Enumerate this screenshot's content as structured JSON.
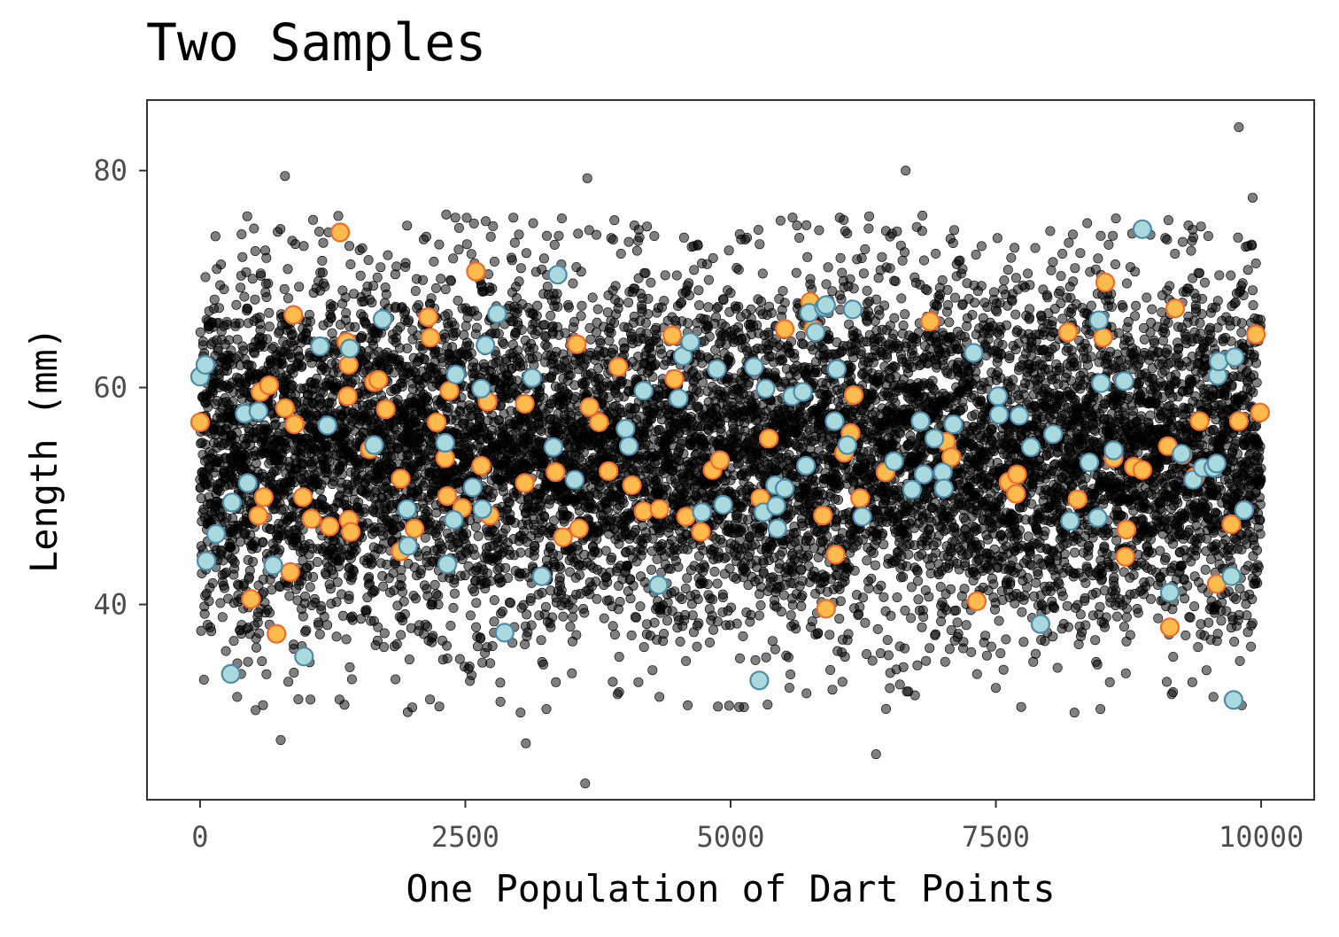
{
  "chart_data": {
    "type": "scatter",
    "title": "Two Samples",
    "xlabel": "One Population of Dart Points",
    "ylabel": "Length (mm)",
    "xlim": [
      -500,
      10500
    ],
    "ylim": [
      22,
      86.5
    ],
    "x_ticks": [
      0,
      2500,
      5000,
      7500,
      10000
    ],
    "y_ticks": [
      40,
      60,
      80
    ],
    "grid": false,
    "legend": "none",
    "population": {
      "n": 10000,
      "mean": 54,
      "sd": 8.4,
      "color": "#000000",
      "opacity": 0.5,
      "extreme_points": [
        {
          "x": 9790,
          "y": 84
        },
        {
          "x": 6650,
          "y": 80
        },
        {
          "x": 800,
          "y": 79.5
        },
        {
          "x": 3650,
          "y": 79.3
        },
        {
          "x": 9920,
          "y": 77.5
        },
        {
          "x": 6370,
          "y": 26.2
        },
        {
          "x": 3630,
          "y": 23.5
        },
        {
          "x": 760,
          "y": 27.5
        },
        {
          "x": 3070,
          "y": 27.2
        }
      ]
    },
    "series": [
      {
        "fill": "#fdbb4d",
        "stroke": "#f06a2b",
        "values": [
          {
            "x": 0,
            "y": 56.8
          },
          {
            "x": 480,
            "y": 40.5
          },
          {
            "x": 550,
            "y": 48.2
          },
          {
            "x": 570,
            "y": 59.6
          },
          {
            "x": 600,
            "y": 49.9
          },
          {
            "x": 650,
            "y": 60.2
          },
          {
            "x": 720,
            "y": 37.3
          },
          {
            "x": 800,
            "y": 58.1
          },
          {
            "x": 850,
            "y": 43
          },
          {
            "x": 880,
            "y": 66.7
          },
          {
            "x": 890,
            "y": 56.6
          },
          {
            "x": 970,
            "y": 49.9
          },
          {
            "x": 1050,
            "y": 47.9
          },
          {
            "x": 1220,
            "y": 47.2
          },
          {
            "x": 1320,
            "y": 74.3
          },
          {
            "x": 1380,
            "y": 64.2
          },
          {
            "x": 1390,
            "y": 59.2
          },
          {
            "x": 1400,
            "y": 62.1
          },
          {
            "x": 1400,
            "y": 47.8
          },
          {
            "x": 1420,
            "y": 46.7
          },
          {
            "x": 1600,
            "y": 54.3
          },
          {
            "x": 1640,
            "y": 60.5
          },
          {
            "x": 1680,
            "y": 60.7
          },
          {
            "x": 1750,
            "y": 58
          },
          {
            "x": 1890,
            "y": 51.6
          },
          {
            "x": 1890,
            "y": 44.9
          },
          {
            "x": 2020,
            "y": 47
          },
          {
            "x": 2150,
            "y": 66.5
          },
          {
            "x": 2170,
            "y": 64.6
          },
          {
            "x": 2230,
            "y": 56.8
          },
          {
            "x": 2310,
            "y": 53.5
          },
          {
            "x": 2330,
            "y": 50
          },
          {
            "x": 2350,
            "y": 59.7
          },
          {
            "x": 2470,
            "y": 48.9
          },
          {
            "x": 2600,
            "y": 70.7
          },
          {
            "x": 2650,
            "y": 52.8
          },
          {
            "x": 2710,
            "y": 58.7
          },
          {
            "x": 2730,
            "y": 48.2
          },
          {
            "x": 3060,
            "y": 58.5
          },
          {
            "x": 3060,
            "y": 51.2
          },
          {
            "x": 3350,
            "y": 52.2
          },
          {
            "x": 3420,
            "y": 46.2
          },
          {
            "x": 3550,
            "y": 64
          },
          {
            "x": 3570,
            "y": 47
          },
          {
            "x": 3670,
            "y": 58.2
          },
          {
            "x": 3760,
            "y": 56.8
          },
          {
            "x": 3850,
            "y": 52.3
          },
          {
            "x": 3940,
            "y": 61.9
          },
          {
            "x": 4070,
            "y": 51
          },
          {
            "x": 4180,
            "y": 48.6
          },
          {
            "x": 4330,
            "y": 48.8
          },
          {
            "x": 4450,
            "y": 64.8
          },
          {
            "x": 4470,
            "y": 60.8
          },
          {
            "x": 4580,
            "y": 48.1
          },
          {
            "x": 4720,
            "y": 46.7
          },
          {
            "x": 4830,
            "y": 52.4
          },
          {
            "x": 4900,
            "y": 53.3
          },
          {
            "x": 5280,
            "y": 49.8
          },
          {
            "x": 5360,
            "y": 55.3
          },
          {
            "x": 5510,
            "y": 65.4
          },
          {
            "x": 5750,
            "y": 67.9
          },
          {
            "x": 5780,
            "y": 65.4
          },
          {
            "x": 5870,
            "y": 48.2
          },
          {
            "x": 5900,
            "y": 39.6
          },
          {
            "x": 5990,
            "y": 44.6
          },
          {
            "x": 6070,
            "y": 54
          },
          {
            "x": 6130,
            "y": 55.8
          },
          {
            "x": 6160,
            "y": 59.3
          },
          {
            "x": 6220,
            "y": 49.8
          },
          {
            "x": 6460,
            "y": 52.2
          },
          {
            "x": 6880,
            "y": 66.1
          },
          {
            "x": 7030,
            "y": 55
          },
          {
            "x": 7080,
            "y": 53.6
          },
          {
            "x": 7320,
            "y": 40.3
          },
          {
            "x": 7620,
            "y": 51.3
          },
          {
            "x": 7690,
            "y": 50.2
          },
          {
            "x": 7700,
            "y": 52
          },
          {
            "x": 8180,
            "y": 65.1
          },
          {
            "x": 8270,
            "y": 49.7
          },
          {
            "x": 8510,
            "y": 64.6
          },
          {
            "x": 8530,
            "y": 69.7
          },
          {
            "x": 8610,
            "y": 53.5
          },
          {
            "x": 8720,
            "y": 44.4
          },
          {
            "x": 8730,
            "y": 46.9
          },
          {
            "x": 8800,
            "y": 52.7
          },
          {
            "x": 8880,
            "y": 52.4
          },
          {
            "x": 9120,
            "y": 54.6
          },
          {
            "x": 9140,
            "y": 37.9
          },
          {
            "x": 9190,
            "y": 67.3
          },
          {
            "x": 9260,
            "y": 53.8
          },
          {
            "x": 9380,
            "y": 51.8
          },
          {
            "x": 9420,
            "y": 56.9
          },
          {
            "x": 9580,
            "y": 41.9
          },
          {
            "x": 9720,
            "y": 47.4
          },
          {
            "x": 9790,
            "y": 56.9
          },
          {
            "x": 9950,
            "y": 64.9
          },
          {
            "x": 9990,
            "y": 57.7
          }
        ]
      },
      {
        "fill": "#a9d9dd",
        "stroke": "#4d8aa8",
        "values": [
          {
            "x": 0,
            "y": 61
          },
          {
            "x": 50,
            "y": 62.1
          },
          {
            "x": 60,
            "y": 44
          },
          {
            "x": 150,
            "y": 46.5
          },
          {
            "x": 290,
            "y": 33.6
          },
          {
            "x": 300,
            "y": 49.4
          },
          {
            "x": 420,
            "y": 57.6
          },
          {
            "x": 450,
            "y": 51.2
          },
          {
            "x": 550,
            "y": 57.8
          },
          {
            "x": 690,
            "y": 43.6
          },
          {
            "x": 980,
            "y": 35.2
          },
          {
            "x": 1130,
            "y": 63.8
          },
          {
            "x": 1200,
            "y": 56.5
          },
          {
            "x": 1410,
            "y": 63.6
          },
          {
            "x": 1640,
            "y": 54.7
          },
          {
            "x": 1720,
            "y": 66.3
          },
          {
            "x": 1950,
            "y": 48.8
          },
          {
            "x": 1960,
            "y": 45.4
          },
          {
            "x": 2310,
            "y": 54.9
          },
          {
            "x": 2330,
            "y": 43.7
          },
          {
            "x": 2390,
            "y": 47.8
          },
          {
            "x": 2410,
            "y": 61.2
          },
          {
            "x": 2570,
            "y": 50.8
          },
          {
            "x": 2650,
            "y": 59.9
          },
          {
            "x": 2660,
            "y": 48.8
          },
          {
            "x": 2690,
            "y": 63.9
          },
          {
            "x": 2800,
            "y": 66.8
          },
          {
            "x": 2870,
            "y": 37.4
          },
          {
            "x": 3130,
            "y": 60.9
          },
          {
            "x": 3220,
            "y": 42.6
          },
          {
            "x": 3330,
            "y": 54.5
          },
          {
            "x": 3370,
            "y": 70.4
          },
          {
            "x": 3530,
            "y": 51.5
          },
          {
            "x": 4010,
            "y": 56.2
          },
          {
            "x": 4040,
            "y": 54.6
          },
          {
            "x": 4180,
            "y": 59.7
          },
          {
            "x": 4320,
            "y": 41.8
          },
          {
            "x": 4510,
            "y": 59
          },
          {
            "x": 4550,
            "y": 62.9
          },
          {
            "x": 4620,
            "y": 64.2
          },
          {
            "x": 4730,
            "y": 48.5
          },
          {
            "x": 4870,
            "y": 61.7
          },
          {
            "x": 4930,
            "y": 49.2
          },
          {
            "x": 5220,
            "y": 61.9
          },
          {
            "x": 5270,
            "y": 33
          },
          {
            "x": 5310,
            "y": 48.5
          },
          {
            "x": 5330,
            "y": 59.9
          },
          {
            "x": 5420,
            "y": 51
          },
          {
            "x": 5430,
            "y": 49.1
          },
          {
            "x": 5440,
            "y": 47
          },
          {
            "x": 5510,
            "y": 50.7
          },
          {
            "x": 5580,
            "y": 59.2
          },
          {
            "x": 5680,
            "y": 59.6
          },
          {
            "x": 5710,
            "y": 52.8
          },
          {
            "x": 5740,
            "y": 66.9
          },
          {
            "x": 5800,
            "y": 65.1
          },
          {
            "x": 5880,
            "y": 67.4
          },
          {
            "x": 5900,
            "y": 67.6
          },
          {
            "x": 5980,
            "y": 56.9
          },
          {
            "x": 6000,
            "y": 61.7
          },
          {
            "x": 6100,
            "y": 54.7
          },
          {
            "x": 6150,
            "y": 67.2
          },
          {
            "x": 6240,
            "y": 48.1
          },
          {
            "x": 6540,
            "y": 53.2
          },
          {
            "x": 6710,
            "y": 50.6
          },
          {
            "x": 6790,
            "y": 56.9
          },
          {
            "x": 6820,
            "y": 52
          },
          {
            "x": 6920,
            "y": 55.3
          },
          {
            "x": 7000,
            "y": 52.2
          },
          {
            "x": 7010,
            "y": 50.7
          },
          {
            "x": 7100,
            "y": 56.6
          },
          {
            "x": 7290,
            "y": 63.2
          },
          {
            "x": 7520,
            "y": 59.2
          },
          {
            "x": 7530,
            "y": 57.5
          },
          {
            "x": 7720,
            "y": 57.4
          },
          {
            "x": 7830,
            "y": 54.5
          },
          {
            "x": 7920,
            "y": 38.2
          },
          {
            "x": 8040,
            "y": 55.7
          },
          {
            "x": 8200,
            "y": 47.7
          },
          {
            "x": 8380,
            "y": 53.1
          },
          {
            "x": 8460,
            "y": 48
          },
          {
            "x": 8470,
            "y": 66.2
          },
          {
            "x": 8490,
            "y": 60.4
          },
          {
            "x": 8610,
            "y": 54.2
          },
          {
            "x": 8710,
            "y": 60.6
          },
          {
            "x": 8880,
            "y": 74.6
          },
          {
            "x": 9140,
            "y": 41.1
          },
          {
            "x": 9250,
            "y": 53.9
          },
          {
            "x": 9360,
            "y": 51.5
          },
          {
            "x": 9450,
            "y": 52.6
          },
          {
            "x": 9550,
            "y": 52.6
          },
          {
            "x": 9580,
            "y": 53
          },
          {
            "x": 9590,
            "y": 61.1
          },
          {
            "x": 9600,
            "y": 62.4
          },
          {
            "x": 9720,
            "y": 42.6
          },
          {
            "x": 9740,
            "y": 31.2
          },
          {
            "x": 9750,
            "y": 62.8
          },
          {
            "x": 9840,
            "y": 48.7
          }
        ]
      }
    ]
  }
}
